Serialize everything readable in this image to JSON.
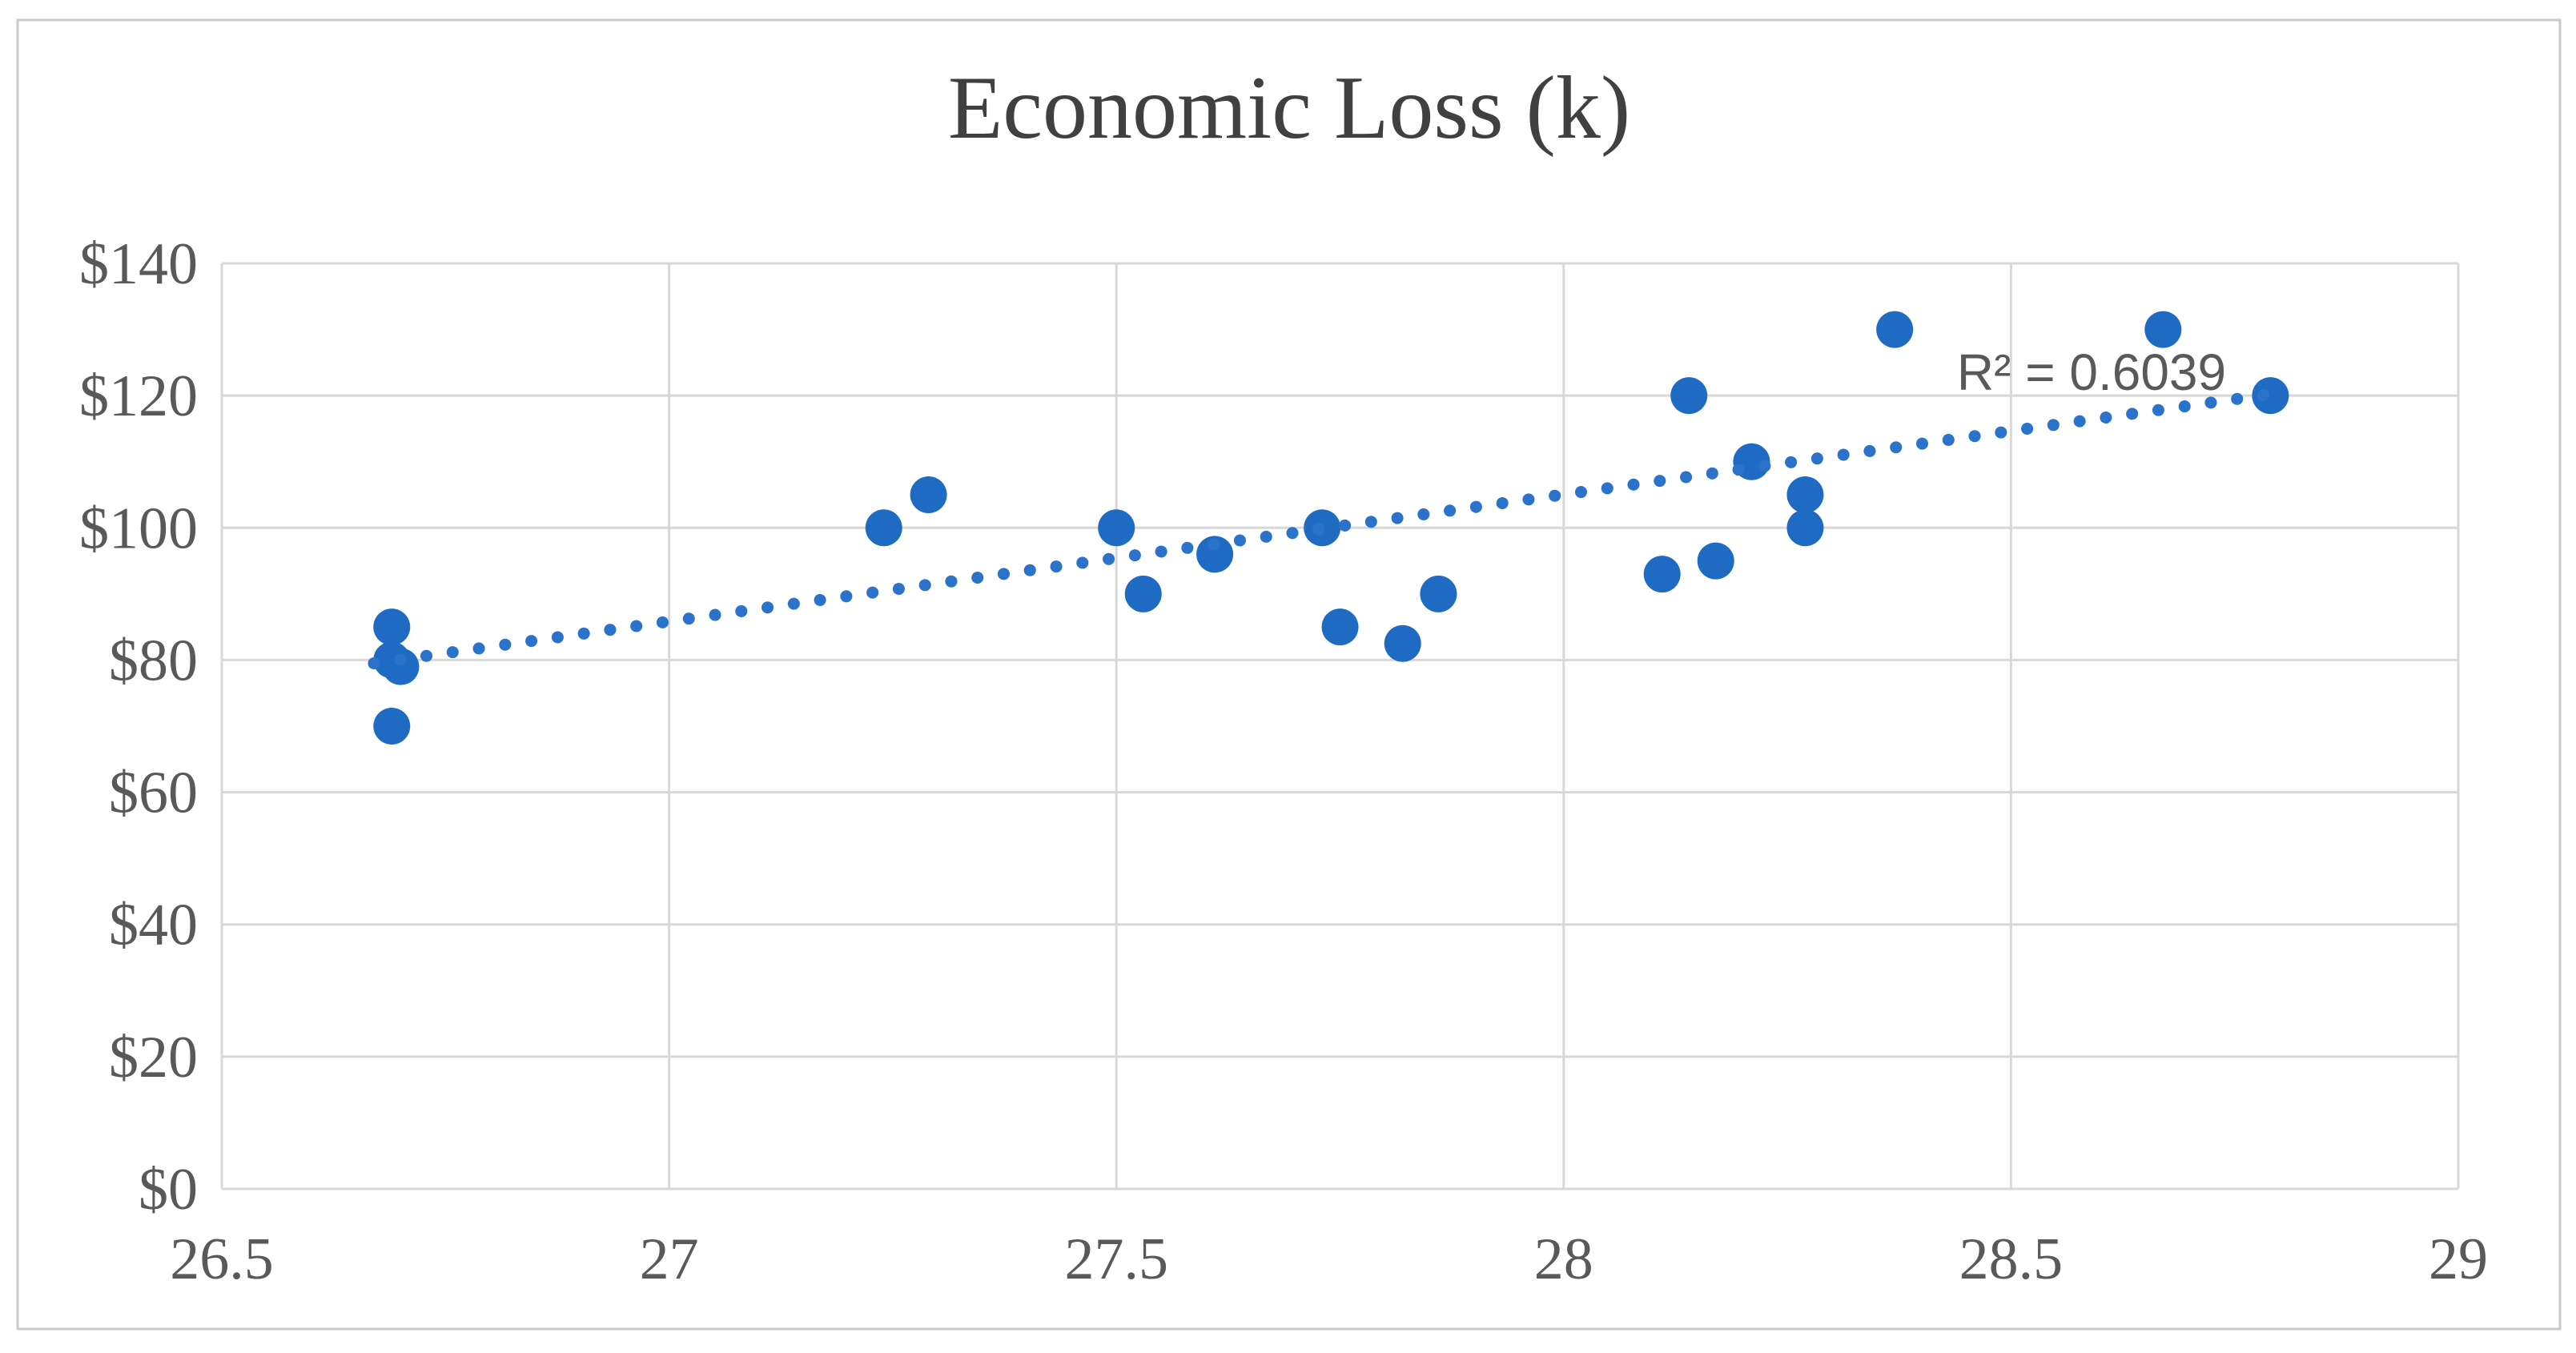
{
  "chart_data": {
    "type": "scatter",
    "title": "Economic Loss (k)",
    "xlabel": "",
    "ylabel": "",
    "xlim": [
      26.5,
      29
    ],
    "ylim": [
      0,
      140
    ],
    "grid": true,
    "legend": "none",
    "x_ticks": [
      {
        "label": "26.5",
        "value": 26.5
      },
      {
        "label": "27",
        "value": 27
      },
      {
        "label": "27.5",
        "value": 27.5
      },
      {
        "label": "28",
        "value": 28
      },
      {
        "label": "28.5",
        "value": 28.5
      },
      {
        "label": "29",
        "value": 29
      }
    ],
    "y_ticks": [
      {
        "label": "$0",
        "value": 0
      },
      {
        "label": "$20",
        "value": 20
      },
      {
        "label": "$40",
        "value": 40
      },
      {
        "label": "$60",
        "value": 60
      },
      {
        "label": "$80",
        "value": 80
      },
      {
        "label": "$100",
        "value": 100
      },
      {
        "label": "$120",
        "value": 120
      },
      {
        "label": "$140",
        "value": 140
      }
    ],
    "series": [
      {
        "name": "Economic Loss",
        "points": [
          {
            "x": 26.69,
            "y": 85
          },
          {
            "x": 26.69,
            "y": 80
          },
          {
            "x": 26.7,
            "y": 79
          },
          {
            "x": 26.69,
            "y": 70
          },
          {
            "x": 27.24,
            "y": 100
          },
          {
            "x": 27.29,
            "y": 105
          },
          {
            "x": 27.5,
            "y": 100
          },
          {
            "x": 27.53,
            "y": 90
          },
          {
            "x": 27.61,
            "y": 96
          },
          {
            "x": 27.73,
            "y": 100
          },
          {
            "x": 27.75,
            "y": 85
          },
          {
            "x": 27.82,
            "y": 82.5
          },
          {
            "x": 27.86,
            "y": 90
          },
          {
            "x": 28.11,
            "y": 93
          },
          {
            "x": 28.14,
            "y": 120
          },
          {
            "x": 28.17,
            "y": 95
          },
          {
            "x": 28.21,
            "y": 110
          },
          {
            "x": 28.27,
            "y": 105
          },
          {
            "x": 28.27,
            "y": 100
          },
          {
            "x": 28.37,
            "y": 130
          },
          {
            "x": 28.67,
            "y": 130
          },
          {
            "x": 28.79,
            "y": 120
          }
        ]
      }
    ],
    "trendline": {
      "style": "dotted",
      "x1": 26.67,
      "y1": 79.5,
      "x2": 28.81,
      "y2": 120.6,
      "r2_label": "R² = 0.6039"
    },
    "colors": {
      "marker": "#1f6bc4",
      "trend": "#2b72cb",
      "grid": "#d8d8d8",
      "tick_text": "#595959",
      "title_text": "#404040",
      "border": "#c9c9c9",
      "background": "#ffffff"
    }
  }
}
